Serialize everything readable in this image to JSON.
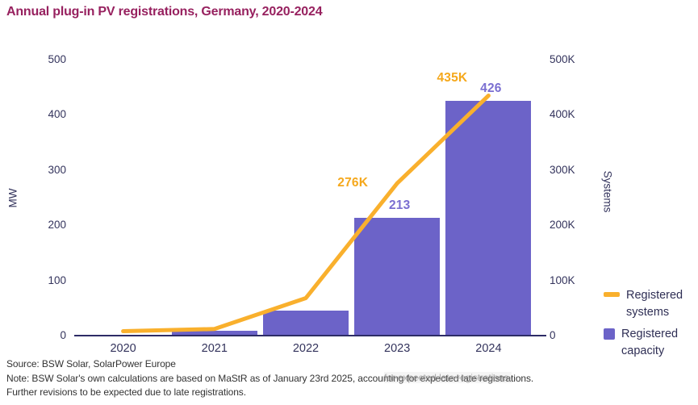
{
  "title": "Annual plug-in PV registrations, Germany, 2020-2024",
  "colors": {
    "title": "#97215F",
    "bar": "#6C63C8",
    "line": "#F9B02D",
    "bar_label": "#7A6ED1",
    "line_label": "#F5A81C",
    "axis_text": "#33335C",
    "axis_line": "#2E2C66"
  },
  "chart_data": {
    "type": "bar",
    "subtype": "combo bar + line, dual axis",
    "title": "Annual plug-in PV registrations, Germany, 2020-2024",
    "categories": [
      "2020",
      "2021",
      "2022",
      "2023",
      "2024"
    ],
    "series": [
      {
        "name": "Registered systems",
        "type": "line",
        "axis": "right",
        "unit": "systems",
        "values": [
          8000,
          12000,
          68000,
          276000,
          435000
        ],
        "labels": [
          null,
          null,
          null,
          "276K",
          "435K"
        ],
        "color": "#F9B02D"
      },
      {
        "name": "Registered capacity",
        "type": "bar",
        "axis": "left",
        "unit": "MW",
        "values": [
          2,
          9,
          46,
          213,
          426
        ],
        "labels": [
          null,
          null,
          null,
          "213",
          "426"
        ],
        "color": "#6C63C8"
      }
    ],
    "left_axis": {
      "title": "MW",
      "range": [
        0,
        500
      ],
      "ticks": [
        "0",
        "100",
        "200",
        "300",
        "400",
        "500"
      ]
    },
    "right_axis": {
      "title": "Systems",
      "range": [
        0,
        500000
      ],
      "ticks": [
        "0",
        "100K",
        "200K",
        "300K",
        "400K",
        "500K"
      ]
    },
    "grid": false,
    "legend_position": "right-bottom"
  },
  "legend": {
    "items": [
      {
        "label": "Registered systems",
        "color": "#F9B02D",
        "shape": "line"
      },
      {
        "label": "Registered capacity",
        "color": "#6C63C8",
        "shape": "square"
      }
    ]
  },
  "footer": {
    "source": "Source: BSW Solar, SolarPower Europe",
    "note_line1": "Note: BSW Solar's own calculations are based on MaStR as of January 23rd 2025, accounting for expected late registrations.",
    "note_line2": "Further revisions to be expected due to late registrations.",
    "note_overlay": "for expected late registrations."
  }
}
